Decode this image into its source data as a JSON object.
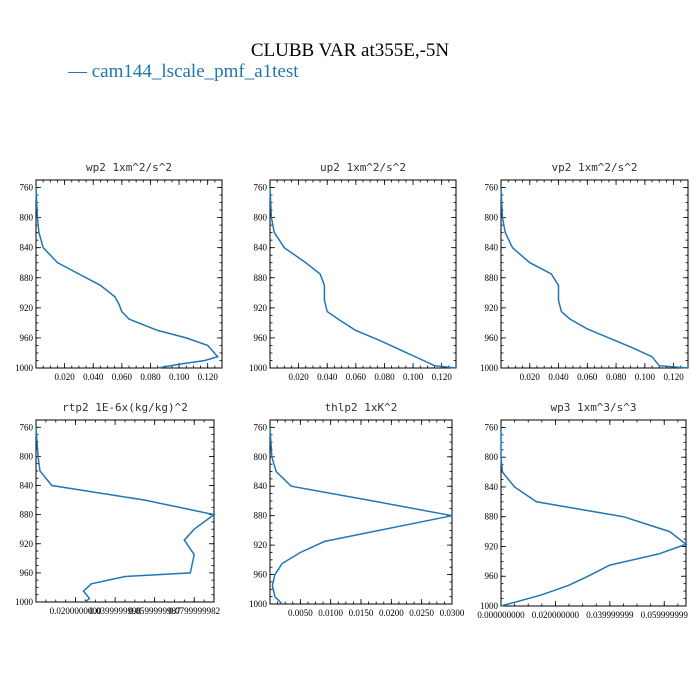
{
  "figure": {
    "title": "CLUBB VAR at355E,-5N",
    "legend_label": "cam144_lscale_pmf_a1test",
    "series_color": "#1f77b4"
  },
  "chart_data": [
    {
      "type": "line",
      "title": "wp2   1xm^2/s^2",
      "xlim": [
        0,
        0.13
      ],
      "ylim": [
        1000,
        750
      ],
      "y_reversed": true,
      "xticks": [
        0.02,
        0.04,
        0.06,
        0.08,
        0.1,
        0.12
      ],
      "xtick_labels": [
        "0.020",
        "0.040",
        "0.060",
        "0.080",
        "0.100",
        "0.120"
      ],
      "yticks": [
        760,
        800,
        840,
        880,
        920,
        960,
        1000
      ],
      "ytick_labels": [
        "760",
        "800",
        "840",
        "880",
        "920",
        "960",
        "1000"
      ],
      "x": [
        0.0,
        0.001,
        0.002,
        0.005,
        0.015,
        0.03,
        0.045,
        0.055,
        0.058,
        0.06,
        0.065,
        0.085,
        0.105,
        0.12,
        0.127,
        0.118,
        0.1,
        0.085
      ],
      "y": [
        760,
        800,
        820,
        840,
        860,
        875,
        890,
        905,
        915,
        925,
        935,
        950,
        960,
        970,
        985,
        990,
        995,
        1000
      ]
    },
    {
      "type": "line",
      "title": "up2   1xm^2/s^2",
      "xlim": [
        0,
        0.13
      ],
      "ylim": [
        1000,
        750
      ],
      "y_reversed": true,
      "xticks": [
        0.02,
        0.04,
        0.06,
        0.08,
        0.1,
        0.12
      ],
      "xtick_labels": [
        "0.020",
        "0.040",
        "0.060",
        "0.080",
        "0.100",
        "0.120"
      ],
      "yticks": [
        760,
        800,
        840,
        880,
        920,
        960,
        1000
      ],
      "ytick_labels": [
        "760",
        "800",
        "840",
        "880",
        "920",
        "960",
        "1000"
      ],
      "x": [
        0.0,
        0.001,
        0.003,
        0.01,
        0.025,
        0.035,
        0.038,
        0.038,
        0.04,
        0.05,
        0.06,
        0.075,
        0.09,
        0.105,
        0.115,
        0.13
      ],
      "y": [
        760,
        800,
        820,
        840,
        860,
        875,
        890,
        910,
        925,
        938,
        950,
        962,
        975,
        988,
        997,
        1000
      ]
    },
    {
      "type": "line",
      "title": "vp2   1xm^2/s^2",
      "xlim": [
        0,
        0.13
      ],
      "ylim": [
        1000,
        750
      ],
      "y_reversed": true,
      "xticks": [
        0.02,
        0.04,
        0.06,
        0.08,
        0.1,
        0.12
      ],
      "xtick_labels": [
        "0.020",
        "0.040",
        "0.060",
        "0.080",
        "0.100",
        "0.120"
      ],
      "yticks": [
        760,
        800,
        840,
        880,
        920,
        960,
        1000
      ],
      "ytick_labels": [
        "760",
        "800",
        "840",
        "880",
        "920",
        "960",
        "1000"
      ],
      "x": [
        0.0,
        0.001,
        0.003,
        0.008,
        0.02,
        0.035,
        0.04,
        0.04,
        0.042,
        0.048,
        0.06,
        0.075,
        0.09,
        0.105,
        0.11,
        0.13
      ],
      "y": [
        760,
        800,
        820,
        840,
        860,
        875,
        890,
        910,
        925,
        935,
        948,
        960,
        972,
        985,
        997,
        1000
      ]
    },
    {
      "type": "line",
      "title": "rtp2   1E-6x(kg/kg)^2",
      "xlim": [
        0,
        0.09
      ],
      "ylim": [
        1000,
        750
      ],
      "y_reversed": true,
      "xticks": [
        0.02,
        0.04,
        0.06,
        0.08
      ],
      "xtick_labels": [
        "0.0200000000",
        "0.0399999998",
        "0.0599999987",
        "0.0799999982"
      ],
      "yticks": [
        760,
        800,
        840,
        880,
        920,
        960,
        1000
      ],
      "ytick_labels": [
        "760",
        "800",
        "840",
        "880",
        "920",
        "960",
        "1000"
      ],
      "x": [
        0.0,
        0.001,
        0.002,
        0.008,
        0.055,
        0.09,
        0.08,
        0.075,
        0.08,
        0.078,
        0.045,
        0.028,
        0.024,
        0.027,
        0.025
      ],
      "y": [
        760,
        800,
        820,
        840,
        860,
        880,
        900,
        915,
        935,
        960,
        965,
        975,
        985,
        995,
        1000
      ]
    },
    {
      "type": "line",
      "title": "thlp2   1xK^2",
      "xlim": [
        0,
        0.03
      ],
      "ylim": [
        1000,
        750
      ],
      "y_reversed": true,
      "xticks": [
        0.005,
        0.01,
        0.015,
        0.02,
        0.025,
        0.03
      ],
      "xtick_labels": [
        "0.0050",
        "0.0100",
        "0.0150",
        "0.0200",
        "0.0250",
        "0.0300"
      ],
      "yticks": [
        760,
        800,
        840,
        880,
        920,
        960,
        1000
      ],
      "ytick_labels": [
        "760",
        "800",
        "840",
        "880",
        "920",
        "960",
        "1000"
      ],
      "x": [
        0.0,
        0.0003,
        0.001,
        0.0035,
        0.017,
        0.03,
        0.018,
        0.009,
        0.005,
        0.002,
        0.0008,
        0.0004,
        0.0008,
        0.002
      ],
      "y": [
        760,
        800,
        820,
        840,
        860,
        880,
        900,
        915,
        930,
        945,
        960,
        975,
        990,
        1000
      ]
    },
    {
      "type": "line",
      "title": "wp3   1xm^3/s^3",
      "xlim": [
        0,
        0.068
      ],
      "ylim": [
        1000,
        750
      ],
      "y_reversed": true,
      "xticks": [
        0.0,
        0.02,
        0.04,
        0.06
      ],
      "xtick_labels": [
        "0.000000000",
        "0.020000000",
        "0.039999999",
        "0.059999999"
      ],
      "yticks": [
        760,
        800,
        840,
        880,
        920,
        960,
        1000
      ],
      "ytick_labels": [
        "760",
        "800",
        "840",
        "880",
        "920",
        "960",
        "1000"
      ],
      "x": [
        0.0,
        0.0,
        0.0005,
        0.005,
        0.013,
        0.045,
        0.062,
        0.068,
        0.058,
        0.04,
        0.032,
        0.025,
        0.015,
        0.005,
        0.0
      ],
      "y": [
        760,
        800,
        820,
        840,
        860,
        880,
        900,
        917,
        930,
        945,
        960,
        972,
        985,
        995,
        1000
      ]
    }
  ]
}
